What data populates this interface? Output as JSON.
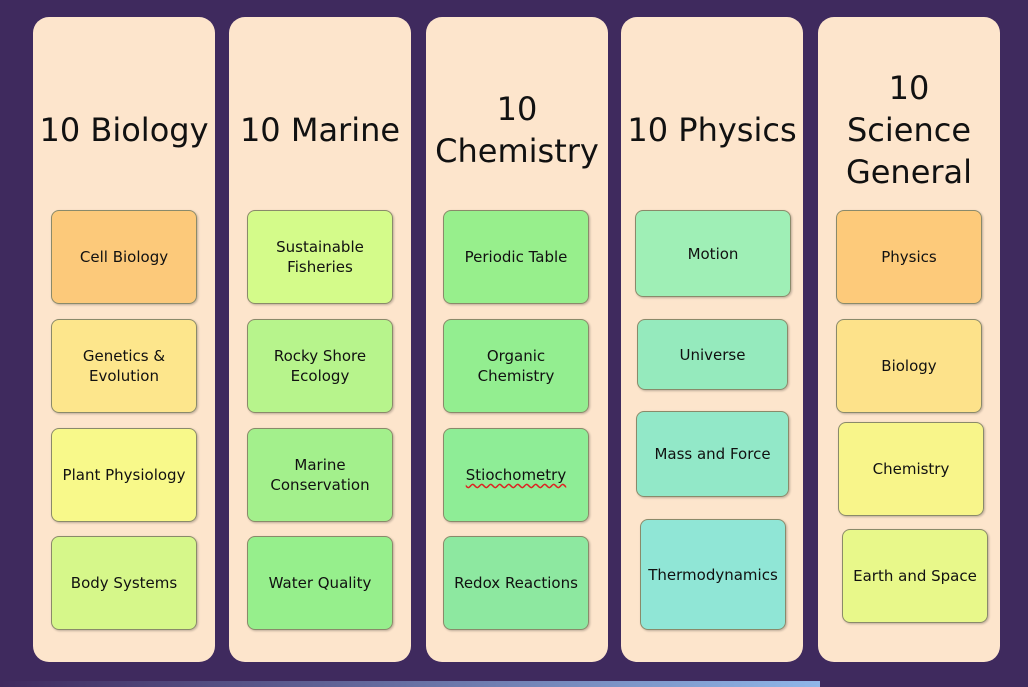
{
  "columns": [
    {
      "title": "10 Biology",
      "items": [
        "Cell Biology",
        "Genetics & Evolution",
        "Plant Physiology",
        "Body Systems"
      ]
    },
    {
      "title": "10 Marine",
      "items": [
        "Sustainable Fisheries",
        "Rocky Shore Ecology",
        "Marine Conservation",
        "Water Quality"
      ]
    },
    {
      "title": "10 Chemistry",
      "items": [
        "Periodic Table",
        "Organic Chemistry",
        "Stiochometry",
        "Redox Reactions"
      ]
    },
    {
      "title": "10 Physics",
      "items": [
        "Motion",
        "Universe",
        "Mass and Force",
        "Thermodynamics"
      ]
    },
    {
      "title": "10 Science General",
      "items": [
        "Physics",
        "Biology",
        "Chemistry",
        "Earth and Space"
      ]
    }
  ]
}
